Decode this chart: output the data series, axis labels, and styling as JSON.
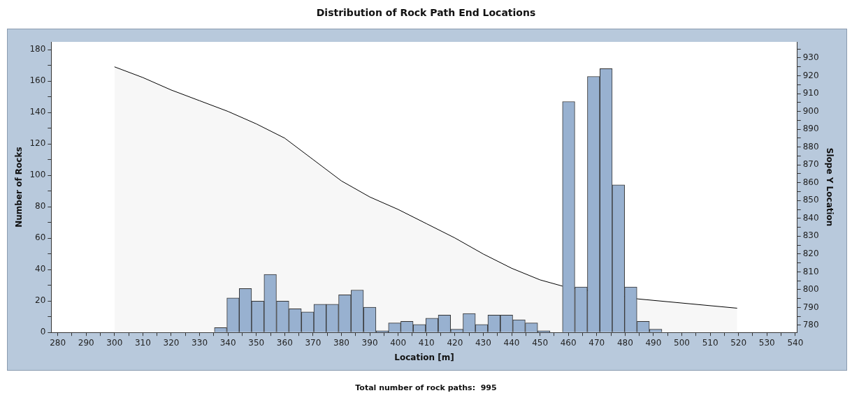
{
  "chart_data": {
    "type": "histogram",
    "title": "Distribution of Rock Path End Locations",
    "xlabel": "Location [m]",
    "ylabel": "Number of Rocks",
    "y2label": "Slope Y Location",
    "bins": [
      335.2,
      339.6,
      344.0,
      348.3,
      352.7,
      357.1,
      361.5,
      365.9,
      370.3,
      374.6,
      379.0,
      383.4,
      387.8,
      392.2,
      396.6,
      400.9,
      405.3,
      409.7,
      414.1,
      418.5,
      422.9,
      427.2,
      431.6,
      436.0,
      440.4,
      444.8,
      449.2,
      453.5,
      457.9,
      462.3,
      466.7,
      471.1,
      475.5,
      479.8,
      484.2,
      488.6,
      493.0
    ],
    "values": [
      3,
      22,
      28,
      20,
      37,
      20,
      15,
      13,
      18,
      18,
      24,
      27,
      16,
      1,
      6,
      7,
      5,
      9,
      11,
      2,
      12,
      5,
      11,
      11,
      8,
      6,
      1,
      0,
      147,
      29,
      163,
      168,
      94,
      29,
      7,
      2
    ],
    "color": "#98b1d0",
    "series": [
      {
        "type": "area",
        "axis": "y2",
        "color": "#000000",
        "x": [
          300,
          310,
          320,
          330,
          340,
          350,
          360,
          370,
          380,
          390,
          400,
          410,
          420,
          430,
          440,
          450,
          457.9,
          484.5,
          519.5
        ],
        "values": [
          925,
          919,
          912,
          906,
          900,
          893,
          885,
          873,
          861,
          852,
          845,
          837,
          829,
          820,
          812,
          805.5,
          802,
          794.8,
          789.6
        ]
      }
    ],
    "xlim": [
      277.7,
      540.7
    ],
    "xticks": [
      280,
      {
        "value": 285,
        "label": null
      },
      290,
      {
        "value": 295,
        "label": null
      },
      300,
      {
        "value": 305,
        "label": null
      },
      310,
      {
        "value": 315,
        "label": null
      },
      320,
      {
        "value": 325,
        "label": null
      },
      330,
      {
        "value": 335,
        "label": null
      },
      340,
      {
        "value": 345,
        "label": null
      },
      350,
      {
        "value": 355,
        "label": null
      },
      360,
      {
        "value": 365,
        "label": null
      },
      370,
      {
        "value": 375,
        "label": null
      },
      380,
      {
        "value": 385,
        "label": null
      },
      390,
      {
        "value": 395,
        "label": null
      },
      400,
      {
        "value": 405,
        "label": null
      },
      410,
      {
        "value": 415,
        "label": null
      },
      420,
      {
        "value": 425,
        "label": null
      },
      430,
      {
        "value": 435,
        "label": null
      },
      440,
      {
        "value": 445,
        "label": null
      },
      450,
      {
        "value": 455,
        "label": null
      },
      460,
      {
        "value": 465,
        "label": null
      },
      470,
      {
        "value": 475,
        "label": null
      },
      480,
      {
        "value": 485,
        "label": null
      },
      490,
      {
        "value": 495,
        "label": null
      },
      500,
      {
        "value": 505,
        "label": null
      },
      510,
      {
        "value": 515,
        "label": null
      },
      520,
      {
        "value": 525,
        "label": null
      },
      530,
      {
        "value": 535,
        "label": null
      },
      540
    ],
    "ylim": [
      0,
      185
    ],
    "yticks": [
      0,
      {
        "value": 10,
        "label": null
      },
      20,
      {
        "value": 30,
        "label": null
      },
      40,
      {
        "value": 50,
        "label": null
      },
      60,
      {
        "value": 70,
        "label": null
      },
      80,
      {
        "value": 90,
        "label": null
      },
      100,
      {
        "value": 110,
        "label": null
      },
      120,
      {
        "value": 130,
        "label": null
      },
      140,
      {
        "value": 150,
        "label": null
      },
      160,
      {
        "value": 170,
        "label": null
      },
      180
    ],
    "y2lim": [
      776,
      939
    ],
    "y2ticks": [
      780,
      {
        "value": 785,
        "label": null
      },
      790,
      {
        "value": 795,
        "label": null
      },
      800,
      {
        "value": 805,
        "label": null
      },
      810,
      {
        "value": 815,
        "label": null
      },
      820,
      {
        "value": 825,
        "label": null
      },
      830,
      {
        "value": 835,
        "label": null
      },
      840,
      {
        "value": 845,
        "label": null
      },
      850,
      {
        "value": 855,
        "label": null
      },
      860,
      {
        "value": 865,
        "label": null
      },
      870,
      {
        "value": 875,
        "label": null
      },
      880,
      {
        "value": 885,
        "label": null
      },
      890,
      {
        "value": 895,
        "label": null
      },
      900,
      {
        "value": 905,
        "label": null
      },
      910,
      {
        "value": 915,
        "label": null
      },
      920,
      {
        "value": 925,
        "label": null
      },
      930,
      {
        "value": 935,
        "label": null
      }
    ],
    "grid": false,
    "legend": false,
    "annotations": [
      "Total number of rock paths:  995"
    ]
  }
}
